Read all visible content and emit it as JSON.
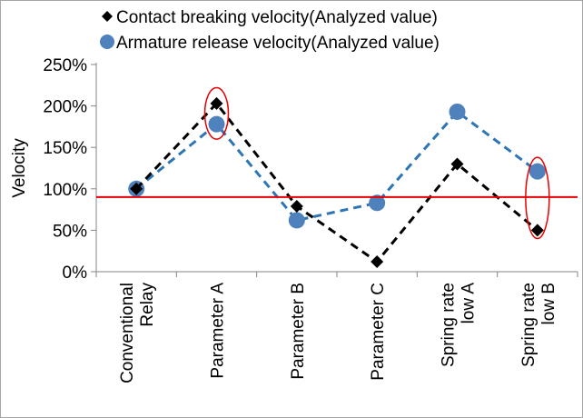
{
  "chart_data": {
    "type": "line",
    "title": "",
    "xlabel": "",
    "ylabel": "Velocity",
    "ylim": [
      0,
      250
    ],
    "yticks": [
      0,
      50,
      100,
      150,
      200,
      250
    ],
    "ytick_labels": [
      "0%",
      "50%",
      "100%",
      "150%",
      "200%",
      "250%"
    ],
    "categories": [
      [
        "Conventional",
        "Relay"
      ],
      [
        "Parameter A"
      ],
      [
        "Parameter B"
      ],
      [
        "Parameter C"
      ],
      [
        "Spring rate",
        "low A"
      ],
      [
        "Spring rate",
        "low B"
      ]
    ],
    "series": [
      {
        "name": "Contact breaking velocity(Analyzed value)",
        "marker": "diamond",
        "color": "#000000",
        "line_style": "dashed",
        "values": [
          100,
          203,
          79,
          12,
          130,
          50
        ]
      },
      {
        "name": "Armature release velocity(Analyzed value)",
        "marker": "circle",
        "color": "#4f81bd",
        "line_color": "#2e75b6",
        "line_style": "dashed",
        "values": [
          100,
          178,
          62,
          83,
          193,
          121
        ]
      }
    ],
    "reference_line": {
      "value": 90,
      "color": "#e60000"
    },
    "highlight_ellipses": [
      {
        "category_index": 1,
        "y_range": [
          160,
          222
        ],
        "color": "#e60000"
      },
      {
        "category_index": 5,
        "y_range": [
          40,
          138
        ],
        "color": "#e60000"
      }
    ],
    "legend_position": "top"
  }
}
